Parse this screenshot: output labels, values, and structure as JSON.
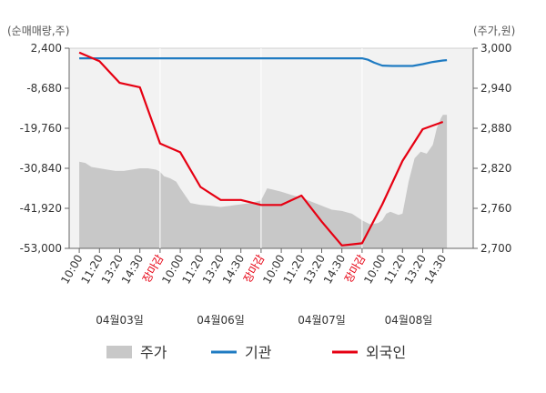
{
  "chart_data": {
    "type": "line",
    "left_axis_unit": "(순매매량,주)",
    "right_axis_unit": "(주가,원)",
    "left_ticks": [
      "2,400",
      "-8,680",
      "-19,760",
      "-30,840",
      "-41,920",
      "-53,000"
    ],
    "right_ticks": [
      "3,000",
      "2,940",
      "2,880",
      "2,820",
      "2,760",
      "2,700"
    ],
    "ylim_left": [
      -53000,
      2400
    ],
    "ylim_right": [
      2700,
      3000
    ],
    "x_slots": 20,
    "x_ticks": [
      {
        "label": "10:00",
        "close": false
      },
      {
        "label": "11:20",
        "close": false
      },
      {
        "label": "13:20",
        "close": false
      },
      {
        "label": "14:30",
        "close": false
      },
      {
        "label": "장마감",
        "close": true
      },
      {
        "label": "10:00",
        "close": false
      },
      {
        "label": "11:20",
        "close": false
      },
      {
        "label": "13:20",
        "close": false
      },
      {
        "label": "14:30",
        "close": false
      },
      {
        "label": "장마감",
        "close": true
      },
      {
        "label": "10:00",
        "close": false
      },
      {
        "label": "11:20",
        "close": false
      },
      {
        "label": "13:20",
        "close": false
      },
      {
        "label": "14:30",
        "close": false
      },
      {
        "label": "장마감",
        "close": true
      },
      {
        "label": "10:00",
        "close": false
      },
      {
        "label": "11:20",
        "close": false
      },
      {
        "label": "13:20",
        "close": false
      },
      {
        "label": "14:30",
        "close": false
      }
    ],
    "dates": [
      {
        "label": "04월03일",
        "slot": 2
      },
      {
        "label": "04월06일",
        "slot": 7
      },
      {
        "label": "04월07일",
        "slot": 12
      },
      {
        "label": "04월08일",
        "slot": 16.3
      }
    ],
    "series": [
      {
        "name": "주가",
        "axis": "right",
        "style": "area",
        "color": "#c8c8c8",
        "x": [
          0,
          0.3,
          0.6,
          1.0,
          1.4,
          1.8,
          2.2,
          2.6,
          3.0,
          3.4,
          3.8,
          4.0,
          4.2,
          4.5,
          4.8,
          5.0,
          5.5,
          6.0,
          6.5,
          7.0,
          7.5,
          8.0,
          8.5,
          9.0,
          9.3,
          9.6,
          10.0,
          10.5,
          11.0,
          11.5,
          12.0,
          12.5,
          13.0,
          13.5,
          14.0,
          14.4,
          14.8,
          15.0,
          15.2,
          15.4,
          15.8,
          16.0,
          16.3,
          16.6,
          16.9,
          17.2,
          17.5,
          17.7,
          17.9,
          18.0,
          18.2
        ],
        "values": [
          2830,
          2828,
          2822,
          2820,
          2818,
          2816,
          2816,
          2818,
          2820,
          2820,
          2818,
          2815,
          2808,
          2805,
          2800,
          2790,
          2768,
          2765,
          2764,
          2762,
          2764,
          2766,
          2768,
          2772,
          2790,
          2788,
          2785,
          2780,
          2776,
          2770,
          2764,
          2758,
          2756,
          2752,
          2742,
          2736,
          2738,
          2742,
          2752,
          2755,
          2750,
          2752,
          2800,
          2835,
          2845,
          2842,
          2855,
          2880,
          2895,
          2900,
          2900
        ]
      },
      {
        "name": "기관",
        "axis": "left",
        "style": "line",
        "color": "#1f7bc2",
        "x": [
          0,
          1,
          2,
          3,
          4,
          5,
          6,
          7,
          8,
          9,
          10,
          11,
          12,
          13,
          14,
          14.3,
          14.6,
          15.0,
          15.5,
          16.0,
          16.5,
          17.0,
          17.5,
          18.0,
          18.2
        ],
        "values": [
          -400,
          -400,
          -400,
          -400,
          -400,
          -400,
          -400,
          -400,
          -400,
          -400,
          -400,
          -400,
          -400,
          -400,
          -400,
          -800,
          -1600,
          -2400,
          -2500,
          -2500,
          -2500,
          -2000,
          -1400,
          -1000,
          -900
        ]
      },
      {
        "name": "외국인",
        "axis": "left",
        "style": "line",
        "color": "#e60012",
        "x": [
          0,
          1,
          2,
          3,
          4,
          5,
          6,
          7,
          8,
          9,
          10,
          11,
          12,
          13,
          14,
          15,
          16,
          17,
          18
        ],
        "values": [
          1200,
          -1200,
          -7200,
          -8400,
          -24000,
          -26400,
          -36000,
          -39600,
          -39600,
          -41000,
          -41000,
          -38400,
          -45600,
          -52200,
          -51600,
          -40800,
          -28800,
          -20000,
          -18000
        ]
      }
    ],
    "legend": [
      {
        "label": "주가",
        "kind": "area",
        "color": "#c8c8c8"
      },
      {
        "label": "기관",
        "kind": "line",
        "color": "#1f7bc2"
      },
      {
        "label": "외국인",
        "kind": "line",
        "color": "#e60012"
      }
    ],
    "legend_position": "bottom",
    "grid": false
  }
}
